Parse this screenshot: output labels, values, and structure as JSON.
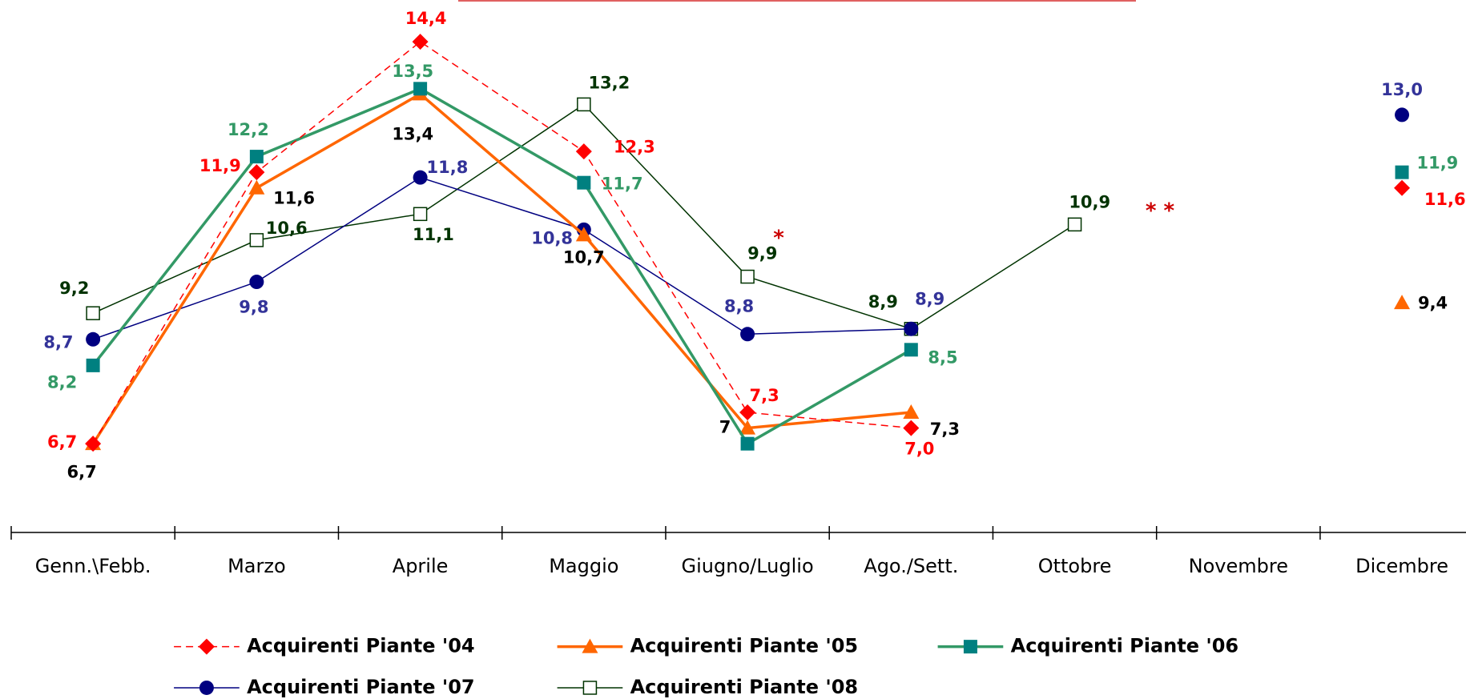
{
  "chart_data": {
    "type": "line",
    "categories": [
      "Genn.\\Febb.",
      "Marzo",
      "Aprile",
      "Maggio",
      "Giugno/Luglio",
      "Ago./Sett.",
      "Ottobre",
      "Novembre",
      "Dicembre"
    ],
    "ylim": [
      5,
      15.2
    ],
    "series": [
      {
        "name": "Acquirenti Piante '04",
        "color": "#ff0000",
        "label_color": "#ff0000",
        "marker": "diamond",
        "dashed": true,
        "values": [
          6.7,
          11.9,
          14.4,
          12.3,
          7.3,
          7.0,
          null,
          null,
          11.6
        ],
        "value_labels": [
          "6,7",
          "11,9",
          "14,4",
          "12,3",
          "7,3",
          "7,0",
          null,
          null,
          "11,6"
        ]
      },
      {
        "name": "Acquirenti Piante '05",
        "color": "#ff6600",
        "label_color": "#000000",
        "marker": "triangle",
        "values": [
          6.7,
          11.6,
          13.4,
          10.7,
          7,
          7.3,
          null,
          null,
          9.4
        ],
        "value_labels": [
          "6,7",
          "11,6",
          "13,4",
          "10,7",
          "7",
          "7,3",
          null,
          null,
          "9,4"
        ]
      },
      {
        "name": "Acquirenti Piante '06",
        "color": "#339966",
        "marker_color": "#008080",
        "label_color": "#339966",
        "marker": "square",
        "values": [
          8.2,
          12.2,
          13.5,
          11.7,
          6.7,
          8.5,
          null,
          null,
          11.9
        ],
        "value_labels": [
          "8,2",
          "12,2",
          "13,5",
          "11,7",
          null,
          "8,5",
          null,
          null,
          "11,9"
        ]
      },
      {
        "name": "Acquirenti Piante '07",
        "color": "#000080",
        "label_color": "#333399",
        "marker": "circle",
        "values": [
          8.7,
          9.8,
          11.8,
          10.8,
          8.8,
          8.9,
          null,
          null,
          13.0
        ],
        "value_labels": [
          "8,7",
          "9,8",
          "11,8",
          "10,8",
          "8,8",
          "8,9",
          null,
          null,
          "13,0"
        ]
      },
      {
        "name": "Acquirenti Piante '08",
        "color": "#003300",
        "label_color": "#003300",
        "marker": "open-square",
        "values": [
          9.2,
          10.6,
          11.1,
          13.2,
          9.9,
          8.9,
          10.9,
          null,
          null
        ],
        "value_labels": [
          "9,2",
          "10,6",
          "11,1",
          "13,2",
          "9,9",
          "8,9",
          "10,9",
          null,
          null
        ]
      }
    ],
    "annotations": [
      "*",
      "* *"
    ]
  }
}
